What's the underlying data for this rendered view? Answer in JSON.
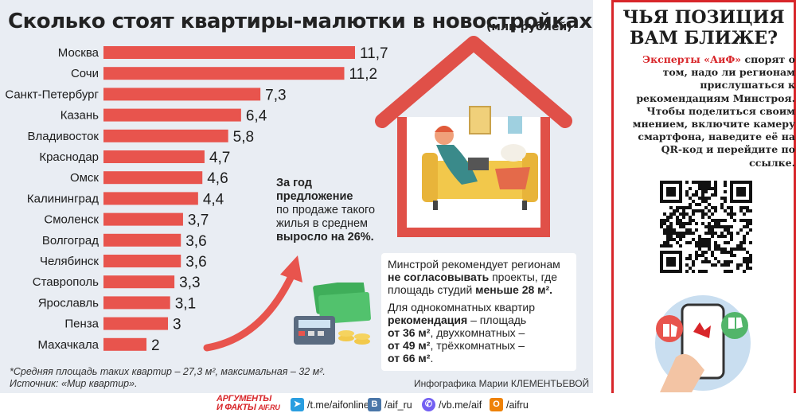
{
  "title": "Сколько стоят квартиры-малютки в новостройках",
  "unit": "(млн рублей)",
  "chart_data": {
    "type": "bar",
    "orientation": "horizontal",
    "categories": [
      "Москва",
      "Сочи",
      "Санкт-Петербург",
      "Казань",
      "Владивосток",
      "Краснодар",
      "Омск",
      "Калининград",
      "Смоленск",
      "Волгоград",
      "Челябинск",
      "Ставрополь",
      "Ярославль",
      "Пенза",
      "Махачкала"
    ],
    "values": [
      11.7,
      11.2,
      7.3,
      6.4,
      5.8,
      4.7,
      4.6,
      4.4,
      3.7,
      3.6,
      3.6,
      3.3,
      3.1,
      3,
      2
    ],
    "value_labels": [
      "11,7",
      "11,2",
      "7,3",
      "6,4",
      "5,8",
      "4,7",
      "4,6",
      "4,4",
      "3,7",
      "3,6",
      "3,6",
      "3,3",
      "3,1",
      "3",
      "2"
    ],
    "bar_color": "#e8544d",
    "grid": false,
    "legend": "none"
  },
  "note1": {
    "line1": "За год",
    "line2": "предложение",
    "line3": "по продаже такого жилья в среднем",
    "line4": "выросло на 26%."
  },
  "info": {
    "p1_a": "Минстрой рекомендует регионам",
    "p1_b": "не согласовывать",
    "p1_c": " проекты, где площадь студий ",
    "p1_d": "меньше 28 м².",
    "p2_a": "Для однокомнатных квартир",
    "p2_b": "рекомендация",
    "p2_c": " – площадь",
    "p2_d": "от 36 м²",
    "p2_e": ", двухкомнатных –",
    "p2_f": "от 49 м²",
    "p2_g": ", трёхкомнатных –",
    "p2_h": "от 66 м²",
    "p2_i": "."
  },
  "footnote": {
    "line1": "*Средняя площадь таких квартир – 27,3 м², максимальная – 32 м².",
    "line2": "Источник: «Мир квартир»."
  },
  "credit": "Инфографика Марии КЛЕМЕНТЬЕВОЙ",
  "poll": {
    "title1": "ЧЬЯ ПОЗИЦИЯ",
    "title2": "ВАМ БЛИЖЕ?",
    "brand": "Эксперты «АиФ»",
    "text": "спорят о том, надо ли регионам прислушаться к рекомендациям Минстроя. Чтобы поделиться своим мнением, включите камеру смартфона, наведите её на QR-код и перейдите по ссылке."
  },
  "footer": {
    "logo_line1": "АРГУМЕНТЫ",
    "logo_line2": "И ФАКТЫ",
    "logo_domain": "AIF.RU",
    "telegram": "/t.me/aifonline",
    "vk": "/aif_ru",
    "viber": "/vb.me/aif",
    "ok": "/aifru"
  },
  "colors": {
    "accent_red": "#d8262a",
    "bar": "#e8544d",
    "panel_bg": "#e9edf3"
  }
}
